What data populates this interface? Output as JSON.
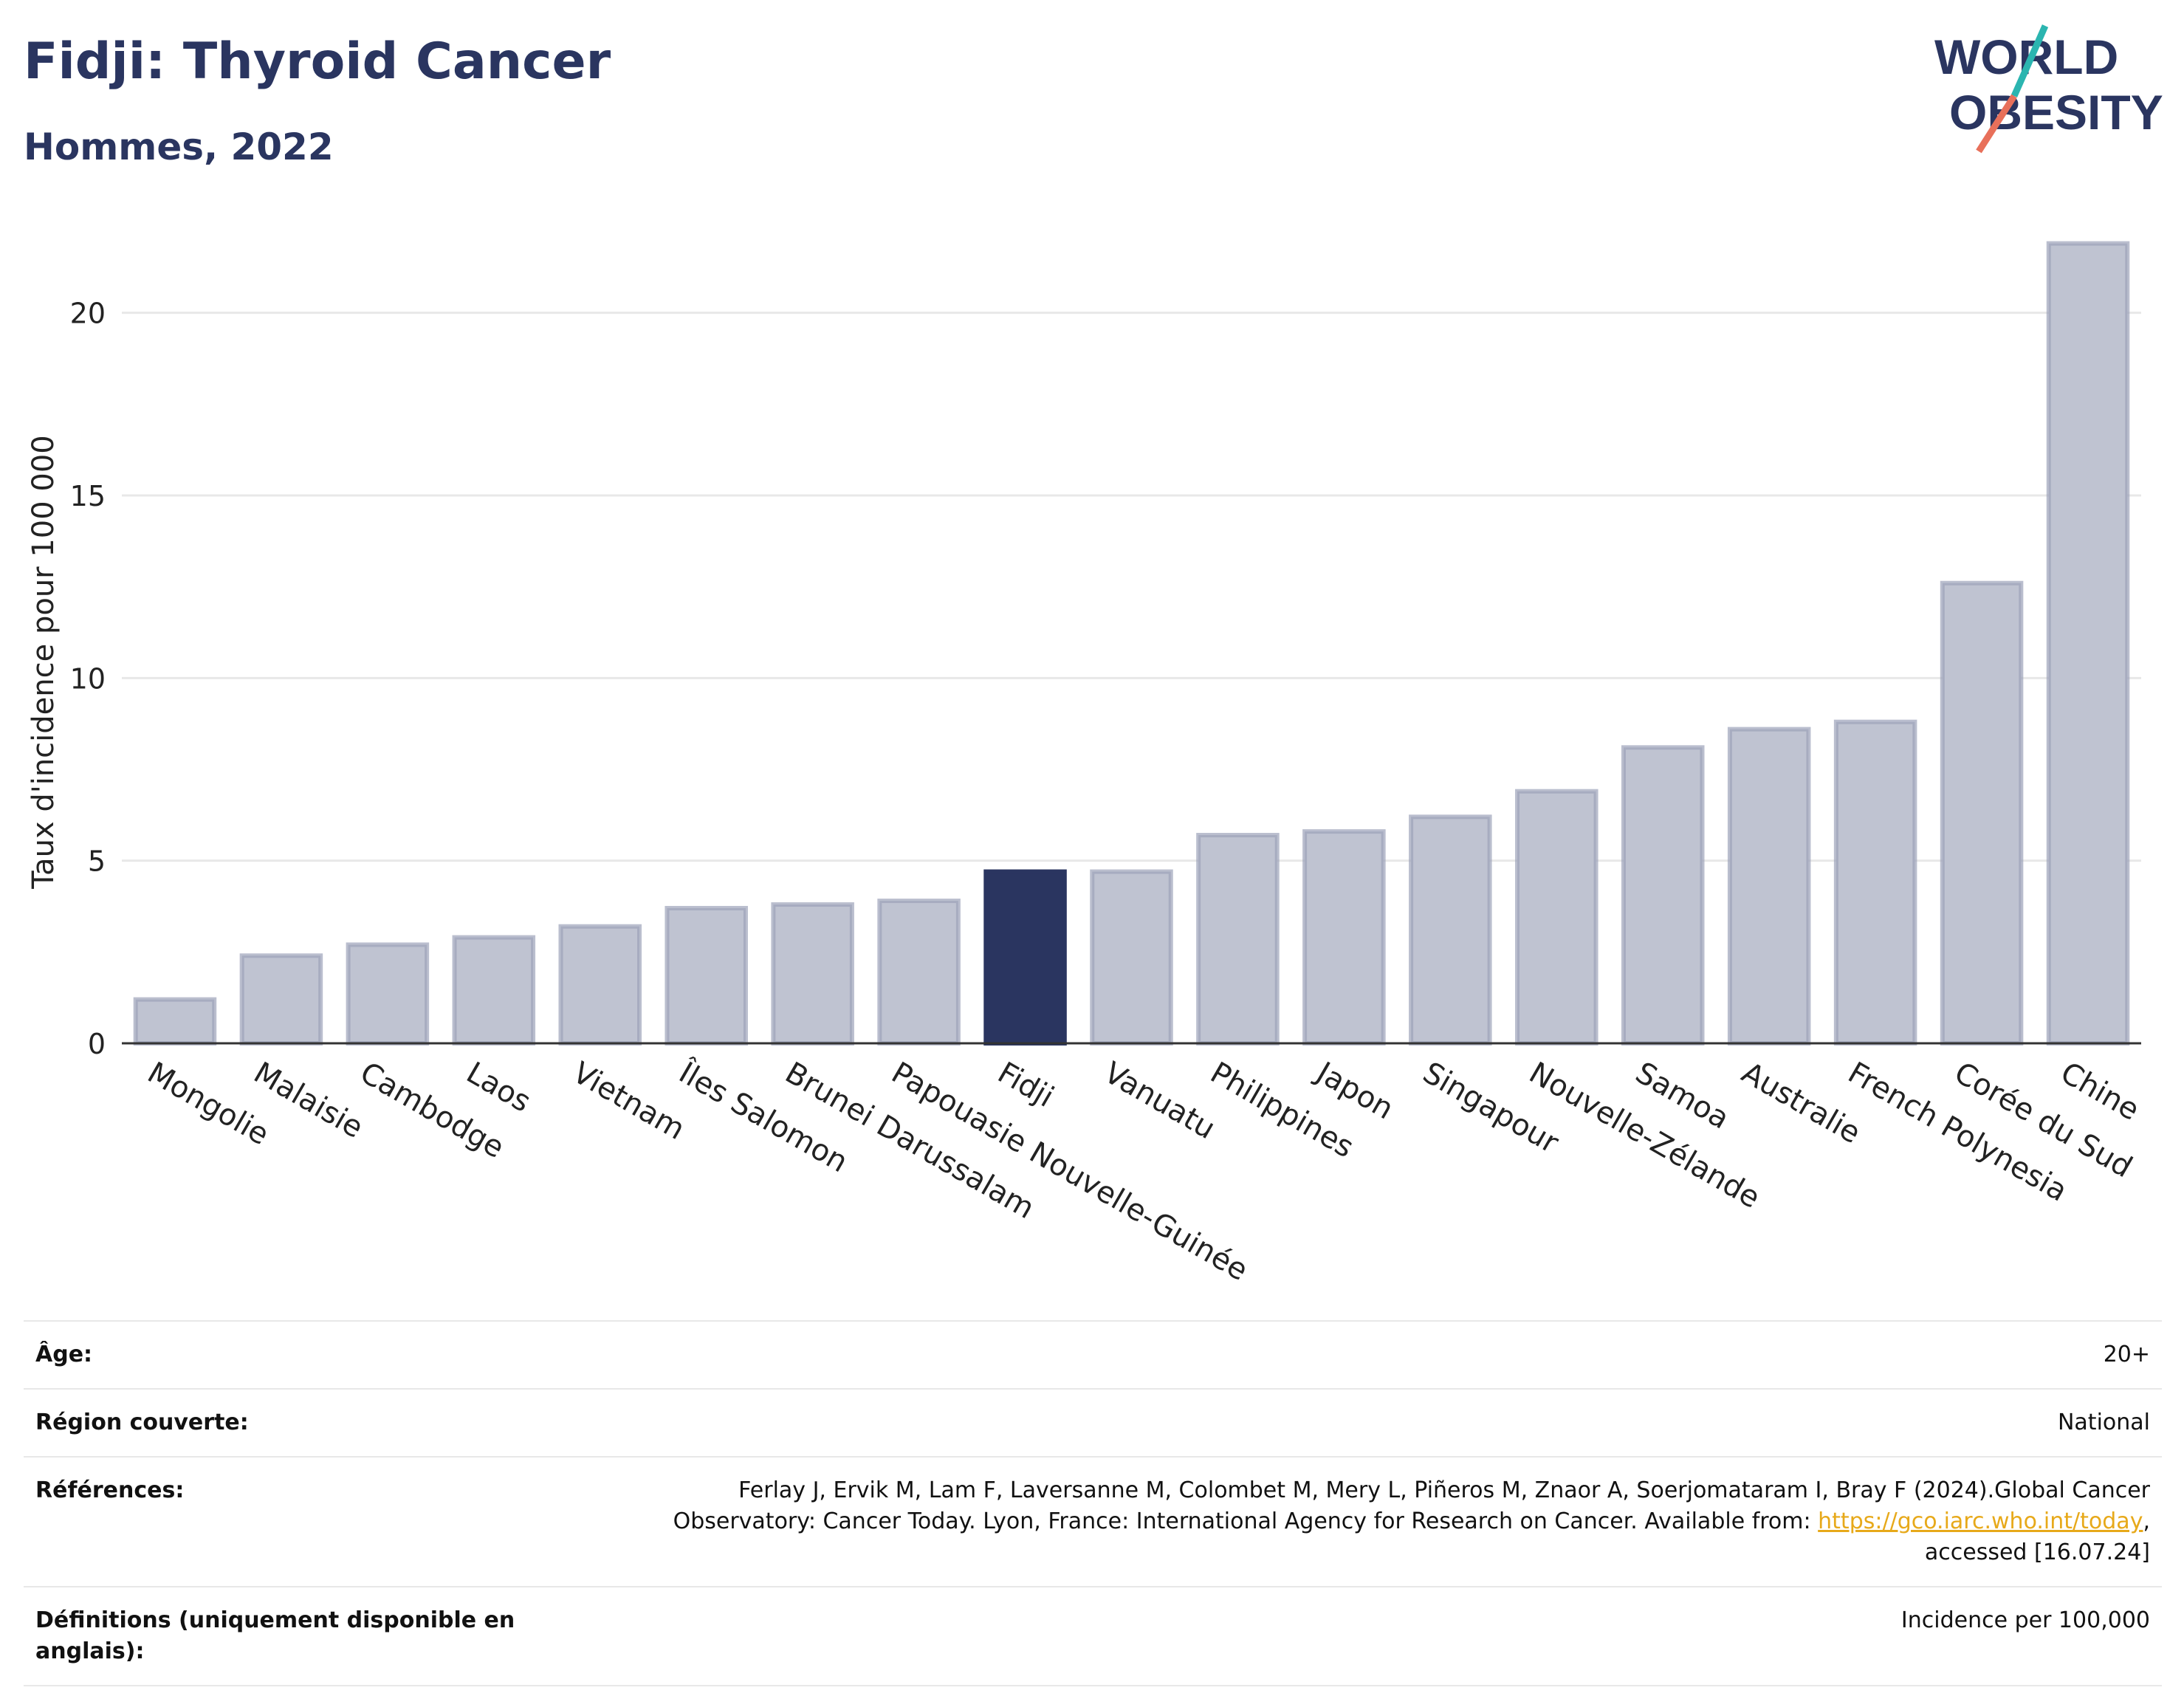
{
  "header": {
    "title": "Fidji: Thyroid Cancer",
    "subtitle": "Hommes, 2022"
  },
  "logo": {
    "line1": "WORLD",
    "line2": "OBESITY",
    "colors": {
      "text": "#2a3560",
      "slash_teal": "#2bb5b0",
      "slash_coral": "#e8705a"
    }
  },
  "chart_data": {
    "type": "bar",
    "categories": [
      "Mongolie",
      "Malaisie",
      "Cambodge",
      "Laos",
      "Vietnam",
      "Îles Salomon",
      "Brunei Darussalam",
      "Papouasie Nouvelle-Guinée",
      "Fidji",
      "Vanuatu",
      "Philippines",
      "Japon",
      "Singapour",
      "Nouvelle-Zélande",
      "Samoa",
      "Australie",
      "French Polynesia",
      "Corée du Sud",
      "Chine"
    ],
    "values": [
      1.2,
      2.4,
      2.7,
      2.9,
      3.2,
      3.7,
      3.8,
      3.9,
      4.7,
      4.7,
      5.7,
      5.8,
      6.2,
      6.9,
      8.1,
      8.6,
      8.8,
      12.6,
      21.9
    ],
    "highlight": "Fidji",
    "title": "",
    "xlabel": "",
    "ylabel": "Taux d'incidence pour 100 000",
    "ylim": [
      0,
      22.5
    ],
    "yticks": [
      0,
      5,
      10,
      15,
      20
    ],
    "grid": true,
    "colors": {
      "bar": "#bfc3d1",
      "bar_border": "#9da3b9",
      "highlight": "#2a3560"
    }
  },
  "meta": {
    "rows": [
      {
        "label": "Âge:",
        "value": "20+"
      },
      {
        "label": "Région couverte:",
        "value": "National"
      },
      {
        "label": "Références:",
        "value_before": "Ferlay J, Ervik M, Lam F, Laversanne M, Colombet M, Mery L, Piñeros M, Znaor A, Soerjomataram I, Bray F (2024).Global Cancer Observatory: Cancer Today. Lyon, France: International Agency for Research on Cancer. Available from: ",
        "link": "https://gco.iarc.who.int/today",
        "value_after": ", accessed [16.07.24]"
      },
      {
        "label": "Définitions (uniquement disponible en anglais):",
        "value": "Incidence per 100,000"
      }
    ]
  }
}
